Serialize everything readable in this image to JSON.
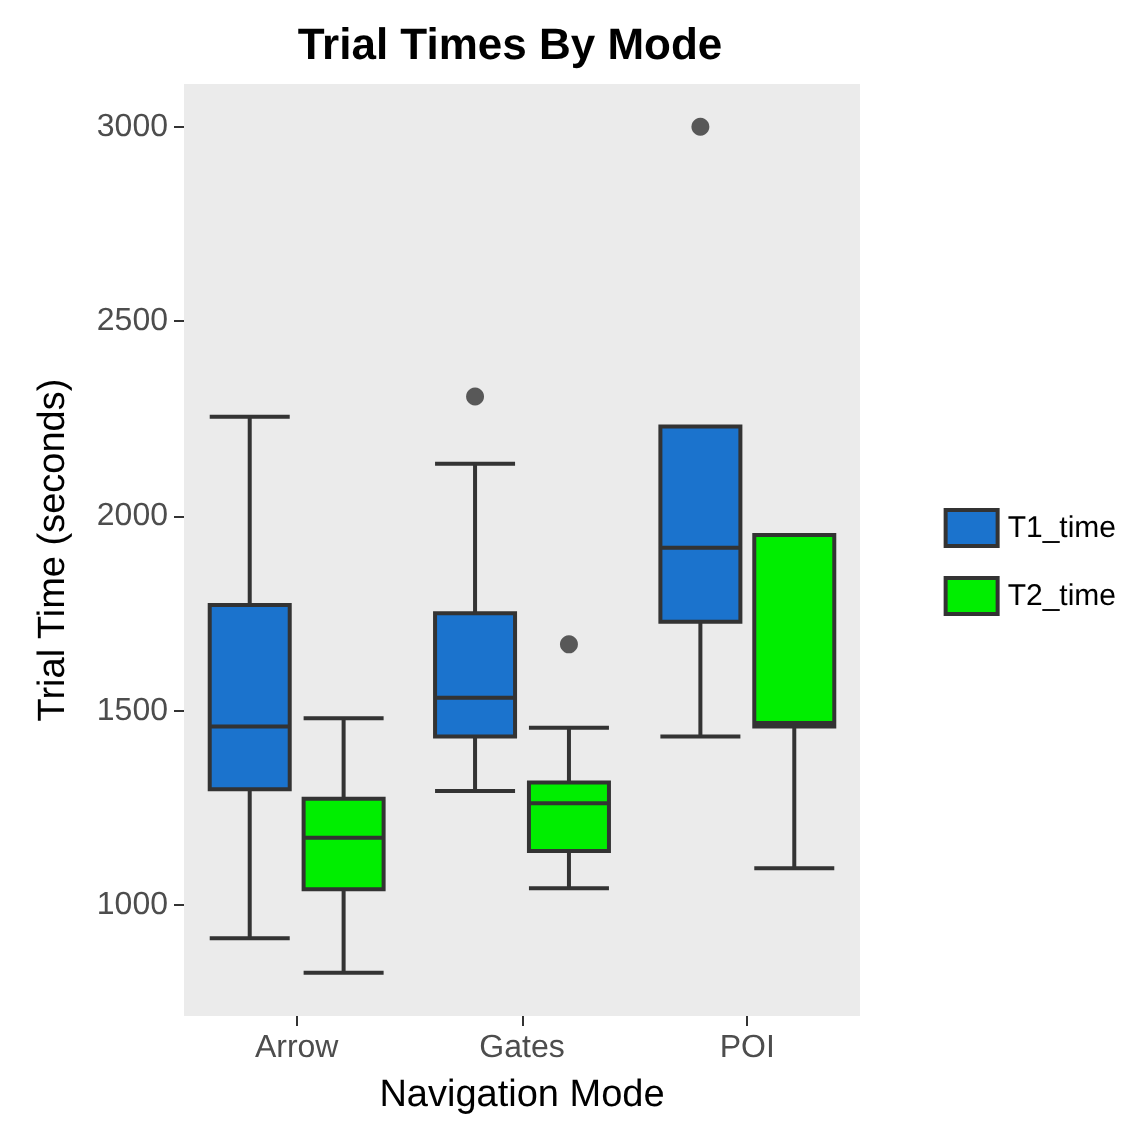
{
  "chart_data": {
    "type": "box",
    "title": "Trial Times By Mode",
    "xlabel": "Navigation Mode",
    "ylabel": "Trial Time (seconds)",
    "categories": [
      "Arrow",
      "Gates",
      "POI"
    ],
    "series": [
      {
        "name": "T1_time",
        "color": "#1b73cd",
        "boxes": [
          {
            "low": 915,
            "q1": 1298,
            "median": 1459,
            "q3": 1771,
            "high": 2255
          },
          {
            "low": 1293,
            "q1": 1433,
            "median": 1533,
            "q3": 1750,
            "high": 2134,
            "outliers": [
              2307
            ]
          },
          {
            "low": 1433,
            "q1": 1728,
            "median": 1918,
            "q3": 2230,
            "high": 2230,
            "outliers": [
              3000
            ]
          }
        ]
      },
      {
        "name": "T2_time",
        "color": "#00ee00",
        "boxes": [
          {
            "low": 826,
            "q1": 1041,
            "median": 1173,
            "q3": 1273,
            "high": 1480
          },
          {
            "low": 1043,
            "q1": 1139,
            "median": 1262,
            "q3": 1315,
            "high": 1456,
            "outliers": [
              1670
            ]
          },
          {
            "low": 1095,
            "q1": 1459,
            "median": 1468,
            "q3": 1951,
            "high": 1951
          }
        ]
      }
    ],
    "ylim": [
      715,
      3110
    ],
    "yticks": [
      1000,
      1500,
      2000,
      2500,
      3000
    ],
    "legend": "right"
  }
}
